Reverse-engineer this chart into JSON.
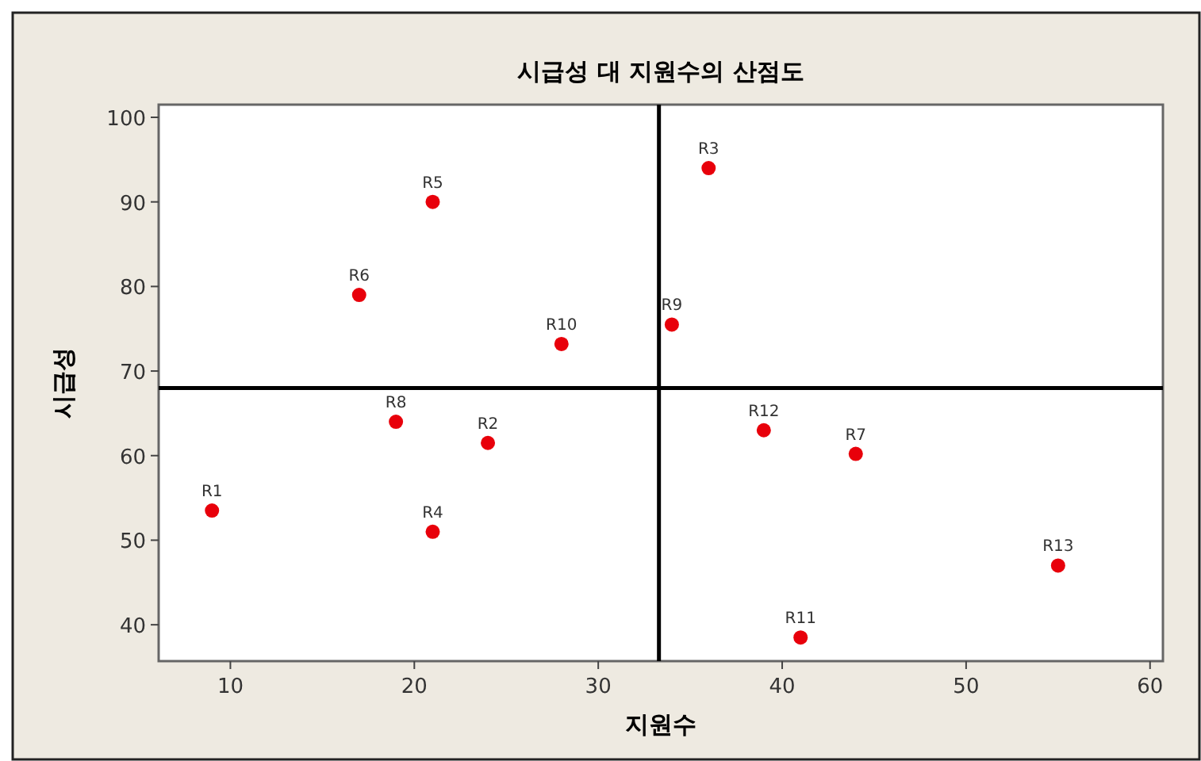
{
  "chart_data": {
    "type": "scatter",
    "title": "시급성 대 지원수의 산점도",
    "xlabel": "지원수",
    "ylabel": "시급성",
    "x": [
      9,
      24,
      36,
      21,
      21,
      17,
      44,
      19,
      34,
      28,
      41,
      39,
      55
    ],
    "series": [
      {
        "color": "#e8000b",
        "values": [
          53.5,
          61.5,
          94,
          51,
          90,
          79,
          60.2,
          64,
          75.5,
          73.2,
          38.5,
          63,
          47
        ]
      }
    ],
    "annotations": [
      {
        "text": "R1",
        "x": 9,
        "y": 53.5
      },
      {
        "text": "R2",
        "x": 24,
        "y": 61.5
      },
      {
        "text": "R3",
        "x": 36,
        "y": 94
      },
      {
        "text": "R4",
        "x": 21,
        "y": 51
      },
      {
        "text": "R5",
        "x": 21,
        "y": 90
      },
      {
        "text": "R6",
        "x": 17,
        "y": 79
      },
      {
        "text": "R7",
        "x": 44,
        "y": 60.2
      },
      {
        "text": "R8",
        "x": 19,
        "y": 64
      },
      {
        "text": "R9",
        "x": 34,
        "y": 75.5
      },
      {
        "text": "R10",
        "x": 28,
        "y": 73.2
      },
      {
        "text": "R11",
        "x": 41,
        "y": 38.5
      },
      {
        "text": "R12",
        "x": 39,
        "y": 63
      },
      {
        "text": "R13",
        "x": 55,
        "y": 47
      }
    ],
    "ref_lines": [
      {
        "axis": "x",
        "value": 33.3,
        "color": "#000000"
      },
      {
        "axis": "y",
        "value": 68,
        "color": "#000000"
      }
    ],
    "xlim": [
      6.1,
      60.7
    ],
    "ylim": [
      35.7,
      101.5
    ],
    "xticks": [
      10,
      20,
      30,
      40,
      50,
      60
    ],
    "yticks": [
      40,
      50,
      60,
      70,
      80,
      90,
      100
    ],
    "marker": "circle",
    "grid": false
  }
}
